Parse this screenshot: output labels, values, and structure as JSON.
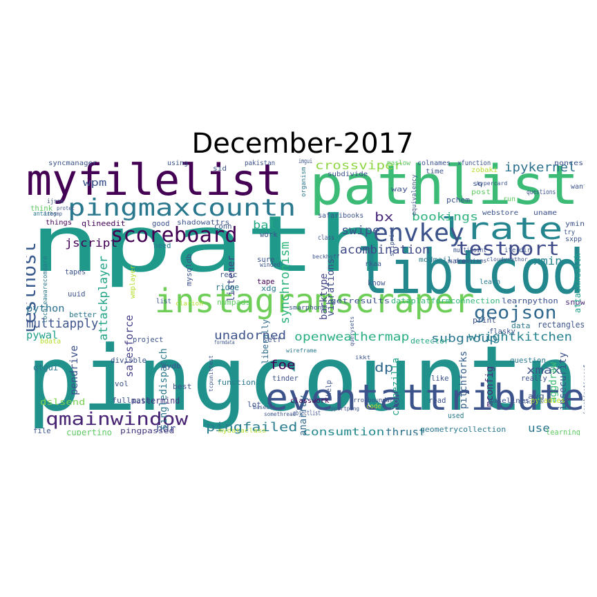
{
  "title": "December-2017",
  "words": [
    {
      "text": "pingcountn",
      "color": "#21918c"
    },
    {
      "text": "npath",
      "color": "#1f998a"
    },
    {
      "text": "libtcod",
      "color": "#23888e"
    },
    {
      "text": "pathlist",
      "color": "#3bbb75"
    },
    {
      "text": "myfilelist",
      "color": "#440154"
    },
    {
      "text": "instagramscraper",
      "color": "#6ece58"
    },
    {
      "text": "eventattribute",
      "color": "#3b528b"
    },
    {
      "text": "pingmaxcountn",
      "color": "#2a788e"
    },
    {
      "text": "lrate",
      "color": "#25858e"
    },
    {
      "text": "envkey",
      "color": "#3b528b"
    },
    {
      "text": "scoreboard",
      "color": "#440154"
    },
    {
      "text": "testport",
      "color": "#3e4a89"
    },
    {
      "text": "testhost",
      "color": "#38598c"
    },
    {
      "text": "qmainwindow",
      "color": "#482475"
    },
    {
      "text": "geojson",
      "color": "#31688e"
    },
    {
      "text": "synchronism",
      "color": "#2fb47c"
    },
    {
      "text": "openweathermap",
      "color": "#29af7f"
    },
    {
      "text": "attackplayer",
      "color": "#20a486"
    },
    {
      "text": "salesforce",
      "color": "#433e85"
    },
    {
      "text": "ipykernel",
      "color": "#2c718e"
    },
    {
      "text": "crossviper",
      "color": "#8fd744"
    },
    {
      "text": "acombination",
      "color": "#3e4989"
    },
    {
      "text": "pingfailed",
      "color": "#287d8e"
    },
    {
      "text": "wrightkitchen",
      "color": "#26828e"
    },
    {
      "text": "multiapply",
      "color": "#3b528b"
    },
    {
      "text": "unadorned",
      "color": "#3b528b"
    },
    {
      "text": "consumtion",
      "color": "#23898e"
    },
    {
      "text": "thrust",
      "color": "#2c728e"
    },
    {
      "text": "jscript",
      "color": "#440154"
    },
    {
      "text": "bookings",
      "color": "#2db27d"
    },
    {
      "text": "subgroup",
      "color": "#2a768e"
    },
    {
      "text": "pendrive",
      "color": "#3b528b"
    },
    {
      "text": "swipe",
      "color": "#3b528b"
    },
    {
      "text": "foe",
      "color": "#440154"
    },
    {
      "text": "dp",
      "color": "#31688e"
    },
    {
      "text": "bx",
      "color": "#482878"
    },
    {
      "text": "bal",
      "color": "#22a884"
    },
    {
      "text": "xmin",
      "color": "#26828e"
    },
    {
      "text": "xmax",
      "color": "#3b528b"
    },
    {
      "text": "wpm",
      "color": "#3b528b"
    },
    {
      "text": "use",
      "color": "#2a768e"
    },
    {
      "text": "hdr",
      "color": "#3b528b"
    },
    {
      "text": "python",
      "color": "#2c728e"
    },
    {
      "text": "pywal",
      "color": "#1f9f88"
    },
    {
      "text": "insecurity",
      "color": "#3b528b"
    },
    {
      "text": "mconfig",
      "color": "#482878"
    },
    {
      "text": "aggdraw",
      "color": "#3dbc74"
    },
    {
      "text": "pitchforks",
      "color": "#355f8d"
    },
    {
      "text": "clonezilla",
      "color": "#1fa187"
    },
    {
      "text": "anarray",
      "color": "#31688e"
    },
    {
      "text": "singledispatch",
      "color": "#2a788e"
    },
    {
      "text": "barktype",
      "color": "#404387"
    },
    {
      "text": "vibrations",
      "color": "#3e4a89"
    },
    {
      "text": "listener",
      "color": "#404387"
    },
    {
      "text": "liberally",
      "color": "#2f6b8e"
    },
    {
      "text": "mastermind",
      "color": "#46337e"
    },
    {
      "text": "fullpath",
      "color": "#3b528b"
    },
    {
      "text": "dslsend",
      "color": "#7ad151"
    },
    {
      "text": "qtgui",
      "color": "#2a788e"
    },
    {
      "text": "cupertino",
      "color": "#5ec962"
    },
    {
      "text": "pingpassed",
      "color": "#443a83"
    },
    {
      "text": "file",
      "color": "#3b528b"
    },
    {
      "text": "geometrycollection",
      "color": "#2a788e"
    },
    {
      "text": "baselines",
      "color": "#3b528b"
    },
    {
      "text": "pyladies",
      "color": "#bddf26"
    },
    {
      "text": "learning",
      "color": "#5ec962"
    },
    {
      "text": "getresults",
      "color": "#3b528b"
    },
    {
      "text": "dataplatformconnection",
      "color": "#35b779"
    },
    {
      "text": "learnpython",
      "color": "#3b528b"
    },
    {
      "text": "snowing",
      "color": "#482878"
    },
    {
      "text": "attackhealth",
      "color": "#1f9e89"
    },
    {
      "text": "rectangles",
      "color": "#3b528b"
    },
    {
      "text": "classwork",
      "color": "#440154"
    },
    {
      "text": "errorboundary",
      "color": "#3b528b"
    },
    {
      "text": "detector",
      "color": "#22a884"
    },
    {
      "text": "mysqldb",
      "color": "#3b528b"
    },
    {
      "text": "wmplayer",
      "color": "#b5de2b"
    },
    {
      "text": "ridge",
      "color": "#2a788e"
    },
    {
      "text": "resc",
      "color": "#3b528b"
    },
    {
      "text": "tape",
      "color": "#440154"
    },
    {
      "text": "numpads",
      "color": "#5ec962"
    },
    {
      "text": "uuid",
      "color": "#3b528b"
    },
    {
      "text": "tapes",
      "color": "#3b528b"
    },
    {
      "text": "better",
      "color": "#2a788e"
    },
    {
      "text": "list",
      "color": "#3b528b"
    },
    {
      "text": "clarion",
      "color": "#b5de2b"
    },
    {
      "text": "vol",
      "color": "#3b528b"
    },
    {
      "text": "best",
      "color": "#3b528b"
    },
    {
      "text": "lot",
      "color": "#3b528b"
    },
    {
      "text": "function",
      "color": "#2a788e"
    },
    {
      "text": "tinder",
      "color": "#3b528b"
    },
    {
      "text": "help",
      "color": "#3b528b"
    },
    {
      "text": "read",
      "color": "#3b528b"
    },
    {
      "text": "like",
      "color": "#3b528b"
    },
    {
      "text": "used",
      "color": "#2a788e"
    },
    {
      "text": "question",
      "color": "#2a788e"
    },
    {
      "text": "really",
      "color": "#3b528b"
    },
    {
      "text": "avg",
      "color": "#3b528b"
    },
    {
      "text": "print",
      "color": "#3b528b"
    },
    {
      "text": "data",
      "color": "#2a788e"
    },
    {
      "text": "flasky",
      "color": "#3b528b"
    },
    {
      "text": "project",
      "color": "#3b528b"
    },
    {
      "text": "divisble",
      "color": "#3b528b"
    },
    {
      "text": "self",
      "color": "#3b528b"
    },
    {
      "text": "mydb",
      "color": "#3b528b"
    },
    {
      "text": "know",
      "color": "#3b528b"
    },
    {
      "text": "xdg",
      "color": "#2a788e"
    },
    {
      "text": "sure",
      "color": "#3b528b"
    },
    {
      "text": "winded",
      "color": "#3b528b"
    },
    {
      "text": "good",
      "color": "#3b528b"
    },
    {
      "text": "conn",
      "color": "#3b528b"
    },
    {
      "text": "work",
      "color": "#3b528b"
    },
    {
      "text": "need",
      "color": "#2a788e"
    },
    {
      "text": "things",
      "color": "#440154"
    },
    {
      "text": "think",
      "color": "#5ec962"
    },
    {
      "text": "antares",
      "color": "#2a788e"
    },
    {
      "text": "qlineedit",
      "color": "#440154"
    },
    {
      "text": "shadowattrs",
      "color": "#3b528b"
    },
    {
      "text": "localeawarecompare",
      "color": "#2a788e"
    },
    {
      "text": "syncmanager",
      "color": "#3b528b"
    },
    {
      "text": "using",
      "color": "#3b528b"
    },
    {
      "text": "pakistan",
      "color": "#3b528b"
    },
    {
      "text": "sid",
      "color": "#3b528b"
    },
    {
      "text": "organism",
      "color": "#2a788e"
    },
    {
      "text": "subdivide",
      "color": "#3b528b"
    },
    {
      "text": "maslow",
      "color": "#5ec962"
    },
    {
      "text": "colnames",
      "color": "#3b528b"
    },
    {
      "text": "xfunction",
      "color": "#3b528b"
    },
    {
      "text": "nonces",
      "color": "#3b528b"
    },
    {
      "text": "time",
      "color": "#3b528b"
    },
    {
      "text": "sq",
      "color": "#3b528b"
    },
    {
      "text": "post",
      "color": "#5ec962"
    },
    {
      "text": "questions",
      "color": "#3b528b"
    },
    {
      "text": "way",
      "color": "#3b528b"
    },
    {
      "text": "equivalency",
      "color": "#3b528b"
    },
    {
      "text": "pchem",
      "color": "#3b528b"
    },
    {
      "text": "run",
      "color": "#5ec962"
    },
    {
      "text": "want",
      "color": "#3b528b"
    },
    {
      "text": "uname",
      "color": "#3b528b"
    },
    {
      "text": "webstore",
      "color": "#3b528b"
    },
    {
      "text": "ymin",
      "color": "#3b528b"
    },
    {
      "text": "try",
      "color": "#3b528b"
    },
    {
      "text": "sxpp",
      "color": "#3b528b"
    },
    {
      "text": "safaribooks",
      "color": "#3b528b"
    },
    {
      "text": "class",
      "color": "#3b528b"
    },
    {
      "text": "modmail",
      "color": "#2a788e"
    },
    {
      "text": "make",
      "color": "#3b528b"
    },
    {
      "text": "multipoint",
      "color": "#3b528b"
    },
    {
      "text": "organisms",
      "color": "#3b528b"
    },
    {
      "text": "cloudyrathor",
      "color": "#3b528b"
    },
    {
      "text": "learn",
      "color": "#2a788e"
    },
    {
      "text": "rkaa",
      "color": "#3b528b"
    },
    {
      "text": "smarphone",
      "color": "#3b528b"
    },
    {
      "text": "beckhoff",
      "color": "#3b528b"
    },
    {
      "text": "sciprint",
      "color": "#3b528b"
    },
    {
      "text": "ijson",
      "color": "#3b528b"
    },
    {
      "text": "protec",
      "color": "#3b528b"
    },
    {
      "text": "libgmp",
      "color": "#3b528b"
    },
    {
      "text": "hypercard",
      "color": "#3b528b"
    },
    {
      "text": "callcenter",
      "color": "#3b528b"
    },
    {
      "text": "ikkt",
      "color": "#3b528b"
    },
    {
      "text": "querysets",
      "color": "#3b528b"
    },
    {
      "text": "baseuri",
      "color": "#3b528b"
    },
    {
      "text": "somethread",
      "color": "#3b528b"
    },
    {
      "text": "objectlist",
      "color": "#3b528b"
    },
    {
      "text": "mydataclass",
      "color": "#b5de2b"
    },
    {
      "text": "code",
      "color": "#b5de2b"
    },
    {
      "text": "bdata",
      "color": "#b5de2b"
    },
    {
      "text": "iterdir",
      "color": "#3b528b"
    },
    {
      "text": "zobaki",
      "color": "#b5de2b"
    },
    {
      "text": "formdata",
      "color": "#3b528b"
    },
    {
      "text": "wireframe",
      "color": "#2a788e"
    },
    {
      "text": "tcpunittest",
      "color": "#3b528b"
    },
    {
      "text": "tcpportping",
      "color": "#3b528b"
    },
    {
      "text": "icombinationsof",
      "color": "#3b528b"
    },
    {
      "text": "imgui",
      "color": "#3b528b"
    }
  ]
}
